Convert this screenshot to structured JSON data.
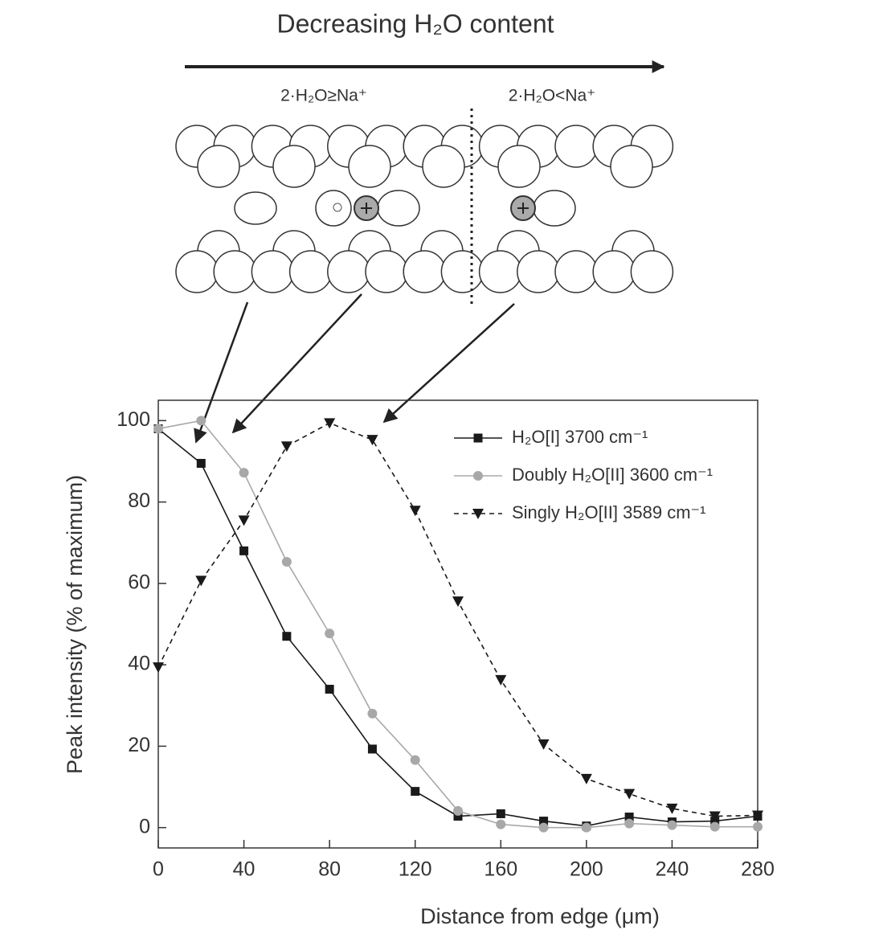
{
  "diagram": {
    "title": "Decreasing  H₂O content",
    "left_label": "2·H₂O≥Na⁺",
    "right_label": "2·H₂O<Na⁺"
  },
  "chart_data": {
    "type": "line",
    "x": [
      0,
      20,
      40,
      60,
      80,
      100,
      120,
      140,
      160,
      180,
      200,
      220,
      240,
      260,
      280
    ],
    "series": [
      {
        "name": "H₂O[I] 3700 cm⁻¹",
        "color": "#1a1a1a",
        "marker": "square",
        "dash": false,
        "values": [
          98,
          89.5,
          68,
          47,
          34,
          19.3,
          8.9,
          2.8,
          3.4,
          1.6,
          0.4,
          2.6,
          1.4,
          1.6,
          2.8
        ]
      },
      {
        "name": "Doubly H₂O[II] 3600 cm⁻¹",
        "color": "#a8a8a8",
        "marker": "circle",
        "dash": false,
        "values": [
          98,
          100,
          87.2,
          65.3,
          47.7,
          28,
          16.6,
          4.1,
          0.8,
          0,
          0,
          1,
          0.6,
          0.2,
          0.2
        ]
      },
      {
        "name": "Singly H₂O[II] 3589 cm⁻¹",
        "color": "#1a1a1a",
        "marker": "triangle-down",
        "dash": true,
        "values": [
          39.4,
          60.7,
          75.5,
          93.7,
          99.4,
          95.3,
          77.9,
          55.6,
          36.3,
          20.5,
          12,
          8.3,
          4.7,
          2.8,
          3
        ]
      }
    ],
    "x_label": "Distance from edge (μm)",
    "y_label": "Peak intensity (% of maximum)",
    "xlim": [
      0,
      280
    ],
    "ylim": [
      -5,
      105
    ],
    "xticks": [
      0,
      40,
      80,
      120,
      160,
      200,
      240,
      280
    ],
    "yticks": [
      0,
      20,
      40,
      60,
      80,
      100
    ],
    "legend": "upper right"
  }
}
